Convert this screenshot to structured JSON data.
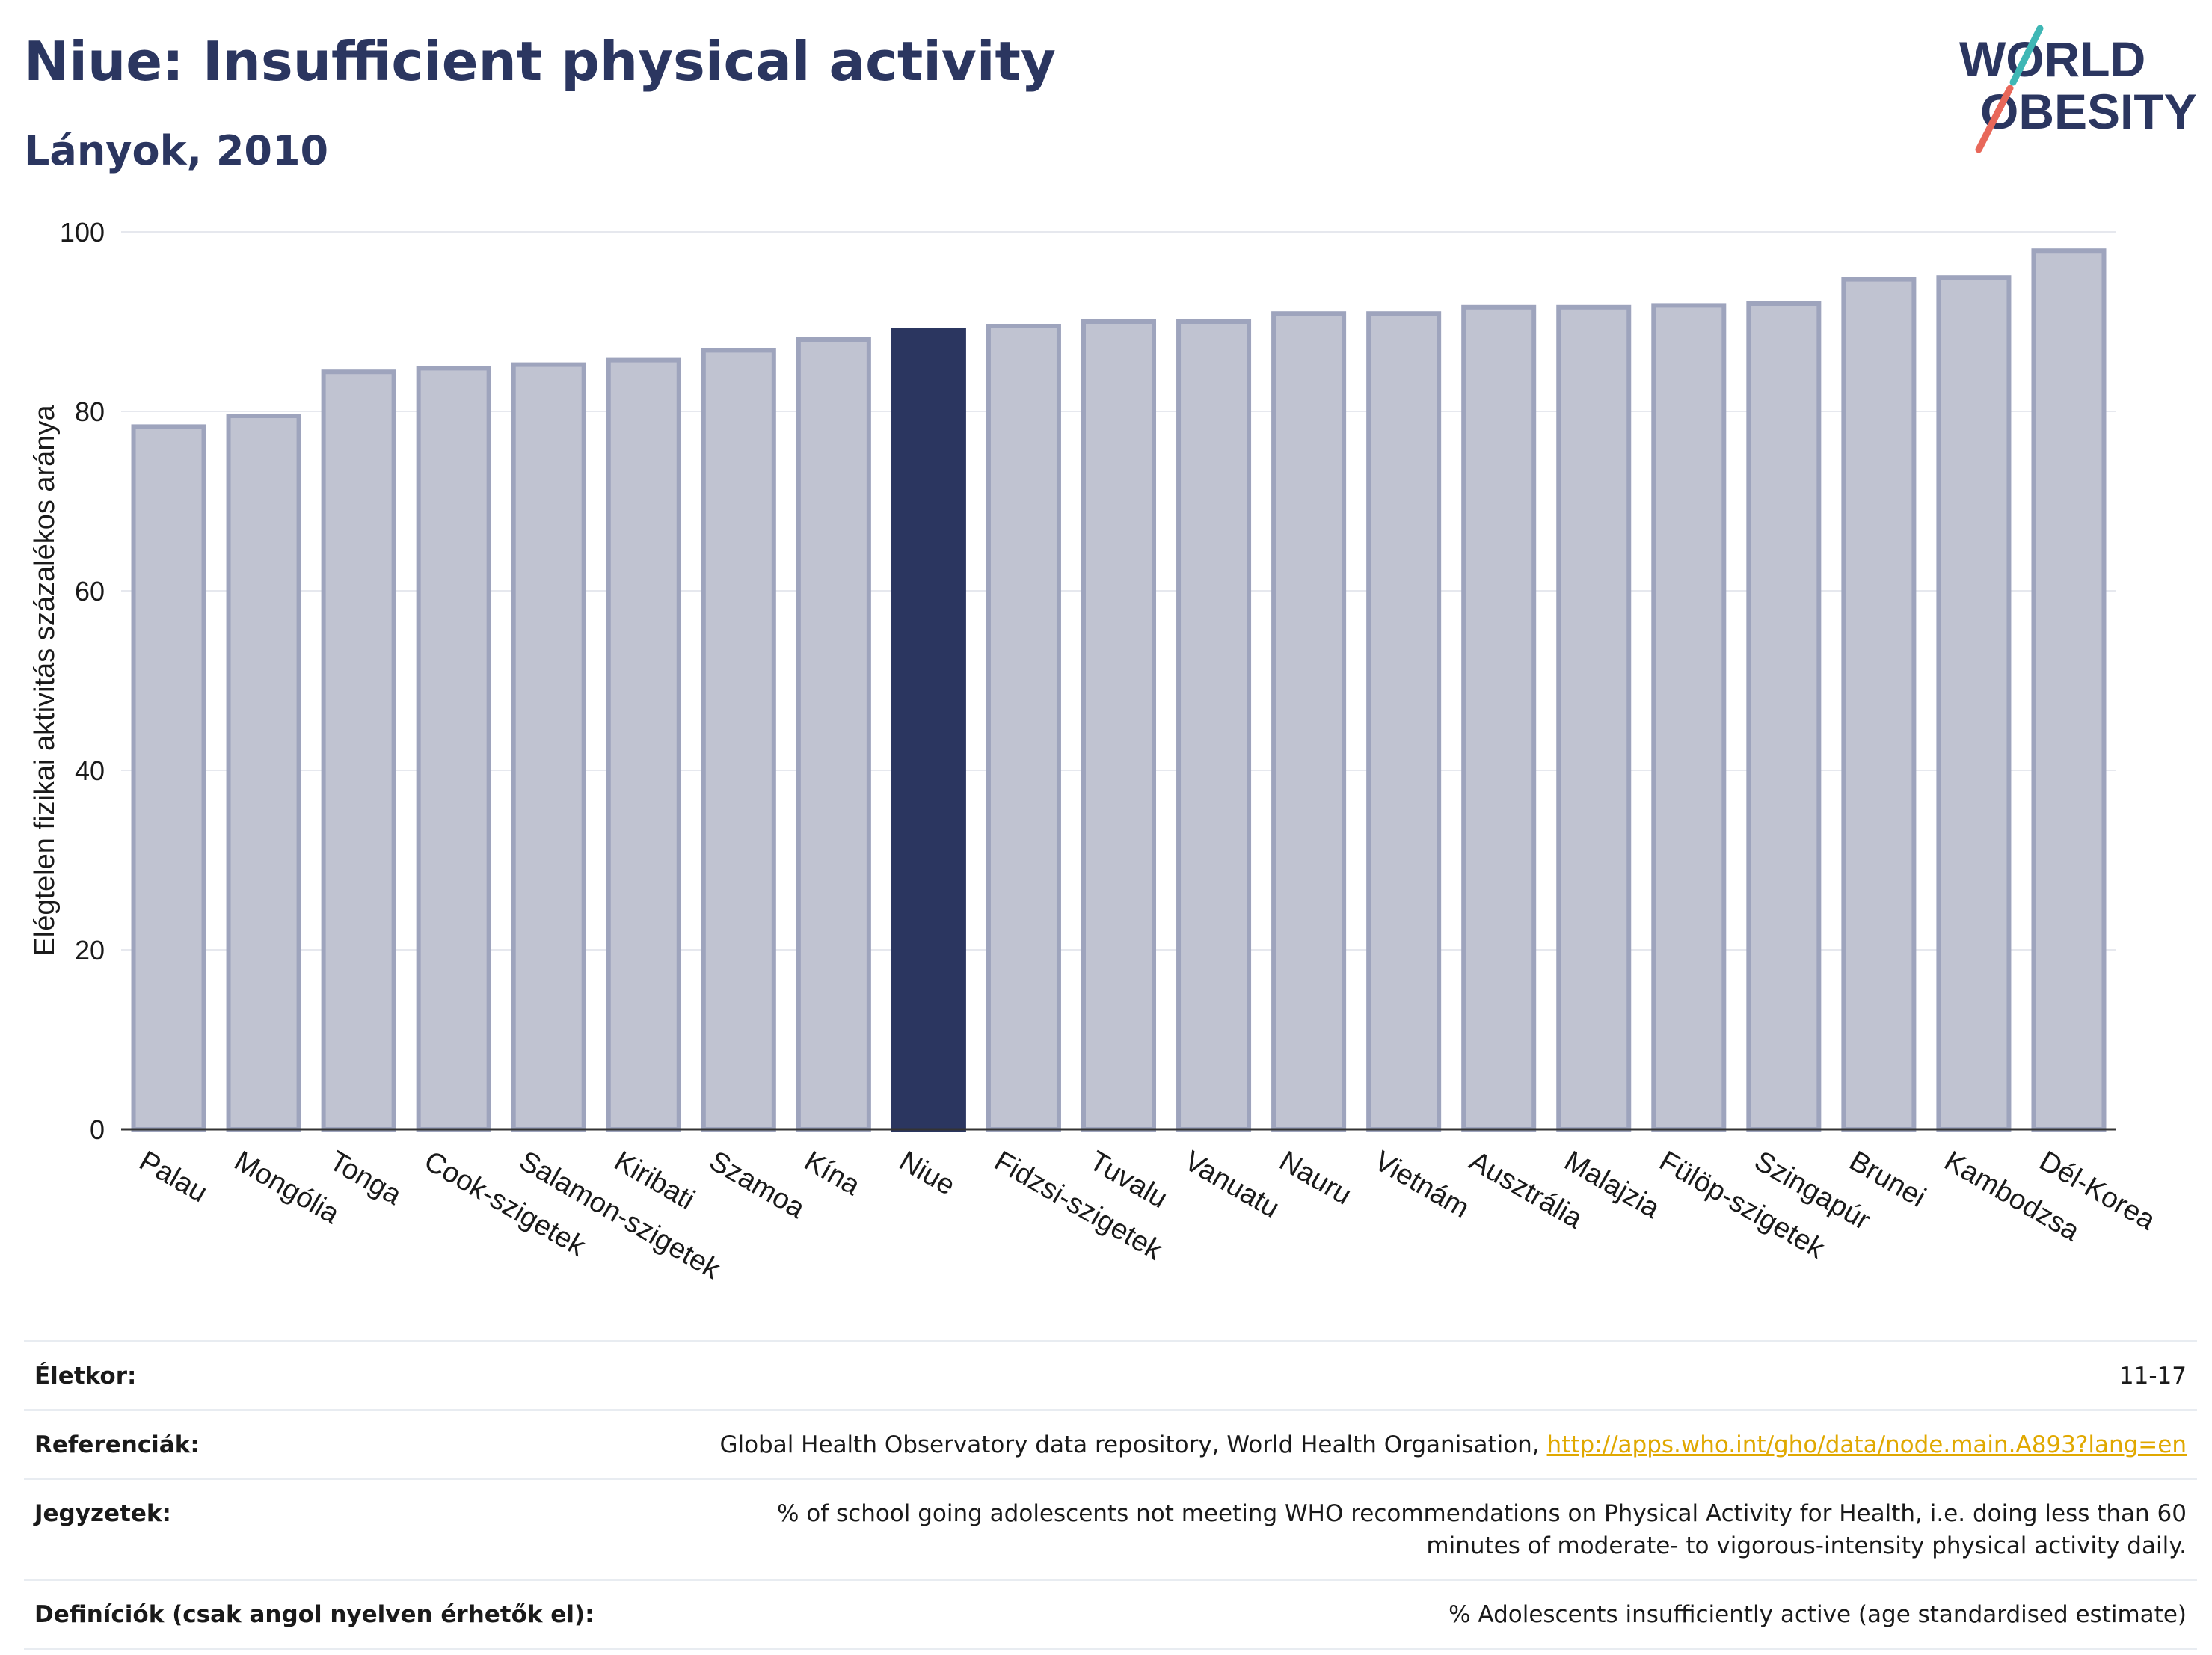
{
  "header": {
    "title": "Niue: Insufficient physical activity",
    "subtitle": "Lányok, 2010"
  },
  "logo": {
    "line1": "WORLD",
    "line2": "OBESITY",
    "colors": {
      "text": "#2b3660",
      "slash_red": "#e8685a",
      "slash_teal": "#3fb7b5"
    }
  },
  "colors": {
    "bar": "#c0c3d1",
    "bar_outline": "#9ea4bd",
    "highlight": "#2b3660",
    "grid": "#e6e8ee",
    "axis": "#333333",
    "text": "#1a1a1a"
  },
  "chart_data": {
    "type": "bar",
    "title": "Niue: Insufficient physical activity",
    "subtitle": "Lányok, 2010",
    "ylabel": "Elégtelen fizikai aktivitás százalékos aránya",
    "xlabel": "",
    "ylim": [
      0,
      100
    ],
    "yticks": [
      0,
      20,
      40,
      60,
      80,
      100
    ],
    "grid": true,
    "highlight": "Niue",
    "categories": [
      "Palau",
      "Mongólia",
      "Tonga",
      "Cook-szigetek",
      "Salamon-szigetek",
      "Kiribati",
      "Szamoa",
      "Kína",
      "Niue",
      "Fidzsi-szigetek",
      "Tuvalu",
      "Vanuatu",
      "Nauru",
      "Vietnám",
      "Ausztrália",
      "Malajzia",
      "Fülöp-szigetek",
      "Szingapúr",
      "Brunei",
      "Kambodzsa",
      "Dél-Korea"
    ],
    "values": [
      78.3,
      79.5,
      84.4,
      84.8,
      85.2,
      85.7,
      86.8,
      88.0,
      89.0,
      89.5,
      90.0,
      90.0,
      90.9,
      90.9,
      91.6,
      91.6,
      91.8,
      92.0,
      94.7,
      94.9,
      97.9
    ]
  },
  "table": {
    "rows": [
      {
        "key": "Életkor:",
        "value": "11-17"
      },
      {
        "key": "Referenciák:",
        "value": "Global Health Observatory data repository, World Health Organisation, ",
        "link": "http://apps.who.int/gho/data/node.main.A893?lang=en"
      },
      {
        "key": "Jegyzetek:",
        "value": "% of school going adolescents not meeting WHO recommendations on Physical Activity for Health, i.e. doing less than 60 minutes of moderate- to vigorous-intensity physical activity daily."
      },
      {
        "key": "Definíciók (csak angol nyelven érhetők el):",
        "value": "% Adolescents insufficiently active (age standardised estimate)"
      }
    ]
  }
}
